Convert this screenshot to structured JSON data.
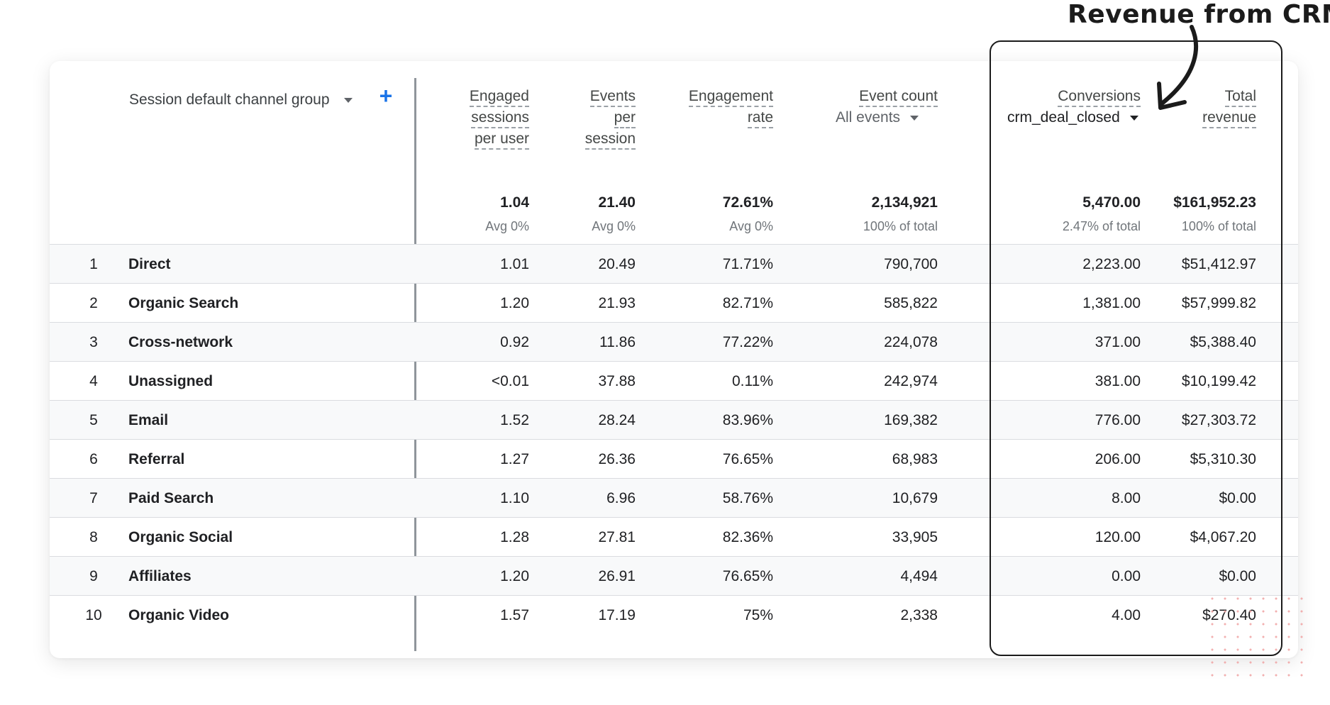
{
  "annotation": {
    "text": "Revenue from CRM"
  },
  "dimension": {
    "label": "Session default channel group"
  },
  "columns": [
    {
      "key": "eng_per_user",
      "lines": [
        "Engaged",
        "sessions",
        "per user"
      ]
    },
    {
      "key": "events_per_session",
      "lines": [
        "Events",
        "per",
        "session"
      ]
    },
    {
      "key": "eng_rate",
      "lines": [
        "Engagement",
        "rate"
      ]
    },
    {
      "key": "event_count",
      "lines": [
        "Event count"
      ],
      "selector": "All events"
    },
    {
      "key": "conversions",
      "lines": [
        "Conversions"
      ],
      "selector": "crm_deal_closed"
    },
    {
      "key": "total_revenue",
      "lines": [
        "Total",
        "revenue"
      ]
    }
  ],
  "totals": {
    "values": [
      "1.04",
      "21.40",
      "72.61%",
      "2,134,921",
      "5,470.00",
      "$161,952.23"
    ],
    "subs": [
      "Avg 0%",
      "Avg 0%",
      "Avg 0%",
      "100% of total",
      "2.47% of total",
      "100% of total"
    ]
  },
  "rows": [
    {
      "idx": "1",
      "name": "Direct",
      "vals": [
        "1.01",
        "20.49",
        "71.71%",
        "790,700",
        "2,223.00",
        "$51,412.97"
      ]
    },
    {
      "idx": "2",
      "name": "Organic Search",
      "vals": [
        "1.20",
        "21.93",
        "82.71%",
        "585,822",
        "1,381.00",
        "$57,999.82"
      ]
    },
    {
      "idx": "3",
      "name": "Cross-network",
      "vals": [
        "0.92",
        "11.86",
        "77.22%",
        "224,078",
        "371.00",
        "$5,388.40"
      ]
    },
    {
      "idx": "4",
      "name": "Unassigned",
      "vals": [
        "<0.01",
        "37.88",
        "0.11%",
        "242,974",
        "381.00",
        "$10,199.42"
      ]
    },
    {
      "idx": "5",
      "name": "Email",
      "vals": [
        "1.52",
        "28.24",
        "83.96%",
        "169,382",
        "776.00",
        "$27,303.72"
      ]
    },
    {
      "idx": "6",
      "name": "Referral",
      "vals": [
        "1.27",
        "26.36",
        "76.65%",
        "68,983",
        "206.00",
        "$5,310.30"
      ]
    },
    {
      "idx": "7",
      "name": "Paid Search",
      "vals": [
        "1.10",
        "6.96",
        "58.76%",
        "10,679",
        "8.00",
        "$0.00"
      ]
    },
    {
      "idx": "8",
      "name": "Organic Social",
      "vals": [
        "1.28",
        "27.81",
        "82.36%",
        "33,905",
        "120.00",
        "$4,067.20"
      ]
    },
    {
      "idx": "9",
      "name": "Affiliates",
      "vals": [
        "1.20",
        "26.91",
        "76.65%",
        "4,494",
        "0.00",
        "$0.00"
      ]
    },
    {
      "idx": "10",
      "name": "Organic Video",
      "vals": [
        "1.57",
        "17.19",
        "75%",
        "2,338",
        "4.00",
        "$270.40"
      ]
    }
  ],
  "colors": {
    "accent": "#1a73e8",
    "annotation": "#1b1b1b",
    "row_alt": "#f8f9fa"
  },
  "icons": {
    "add": "plus-icon",
    "dropdown": "caret-down-icon",
    "pointer": "arrow-icon"
  }
}
